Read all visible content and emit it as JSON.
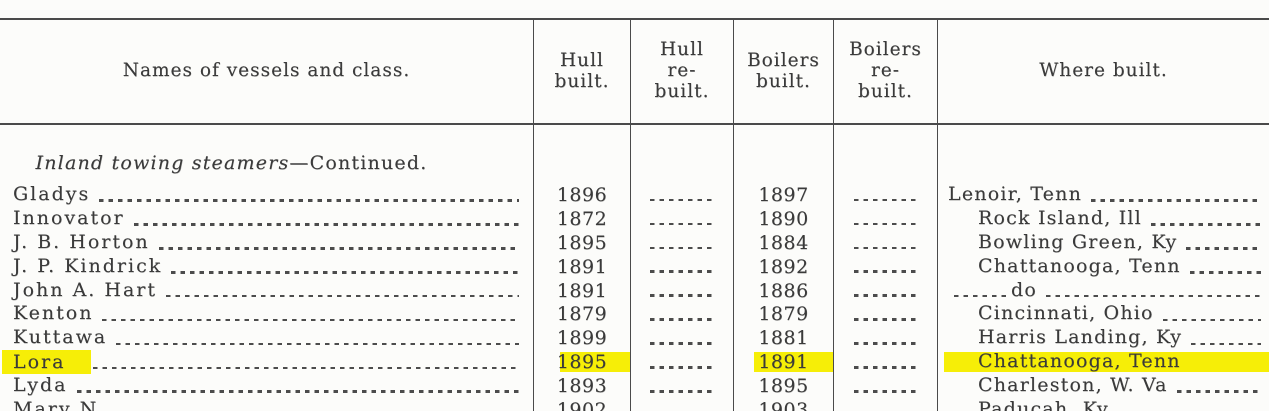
{
  "document": {
    "kind": "scanned-table",
    "highlight_color": "#f6ee07",
    "paper_color": "#fcfcfa"
  },
  "table": {
    "columns": [
      {
        "label": "Names of vessels and class."
      },
      {
        "label": "Hull\nbuilt."
      },
      {
        "label": "Hull\nre-\nbuilt."
      },
      {
        "label": "Boilers\nbuilt."
      },
      {
        "label": "Boilers\nre-\nbuilt."
      },
      {
        "label": "Where built."
      }
    ],
    "section_header": {
      "italic_part": "Inland towing steamers",
      "plain_part": "—Continued."
    },
    "rows": [
      {
        "name": "Gladys",
        "hull_built": "1896",
        "hull_rebuilt": "",
        "boilers_built": "1897",
        "boilers_rebuilt": "",
        "where_built": "Lenoir, Tenn",
        "where_indent": false,
        "ditto": false,
        "highlight": false,
        "partial": false
      },
      {
        "name": "Innovator",
        "hull_built": "1872",
        "hull_rebuilt": "",
        "boilers_built": "1890",
        "boilers_rebuilt": "",
        "where_built": "Rock Island, Ill",
        "where_indent": true,
        "ditto": false,
        "highlight": false,
        "partial": false
      },
      {
        "name": "J. B. Horton",
        "hull_built": "1895",
        "hull_rebuilt": "",
        "boilers_built": "1884",
        "boilers_rebuilt": "",
        "where_built": "Bowling Green, Ky",
        "where_indent": true,
        "ditto": false,
        "highlight": false,
        "partial": false
      },
      {
        "name": "J. P. Kindrick",
        "hull_built": "1891",
        "hull_rebuilt": "",
        "boilers_built": "1892",
        "boilers_rebuilt": "",
        "where_built": "Chattanooga, Tenn",
        "where_indent": true,
        "ditto": false,
        "highlight": false,
        "partial": false
      },
      {
        "name": "John A. Hart",
        "hull_built": "1891",
        "hull_rebuilt": "",
        "boilers_built": "1886",
        "boilers_rebuilt": "",
        "where_built": "do",
        "where_indent": false,
        "ditto": true,
        "highlight": false,
        "partial": false
      },
      {
        "name": "Kenton",
        "hull_built": "1879",
        "hull_rebuilt": "",
        "boilers_built": "1879",
        "boilers_rebuilt": "",
        "where_built": "Cincinnati, Ohio",
        "where_indent": true,
        "ditto": false,
        "highlight": false,
        "partial": false
      },
      {
        "name": "Kuttawa",
        "hull_built": "1899",
        "hull_rebuilt": "",
        "boilers_built": "1881",
        "boilers_rebuilt": "",
        "where_built": "Harris Landing, Ky",
        "where_indent": true,
        "ditto": false,
        "highlight": false,
        "partial": false
      },
      {
        "name": "Lora",
        "hull_built": "1895",
        "hull_rebuilt": "",
        "boilers_built": "1891",
        "boilers_rebuilt": "",
        "where_built": "Chattanooga, Tenn",
        "where_indent": true,
        "ditto": false,
        "highlight": true,
        "partial": false
      },
      {
        "name": "Lyda",
        "hull_built": "1893",
        "hull_rebuilt": "",
        "boilers_built": "1895",
        "boilers_rebuilt": "",
        "where_built": "Charleston, W. Va",
        "where_indent": true,
        "ditto": false,
        "highlight": false,
        "partial": false
      },
      {
        "name": "Mary N",
        "hull_built": "1902",
        "hull_rebuilt": "",
        "boilers_built": "1903",
        "boilers_rebuilt": "",
        "where_built": "Paducah, Ky",
        "where_indent": true,
        "ditto": false,
        "highlight": false,
        "partial": true
      }
    ]
  }
}
